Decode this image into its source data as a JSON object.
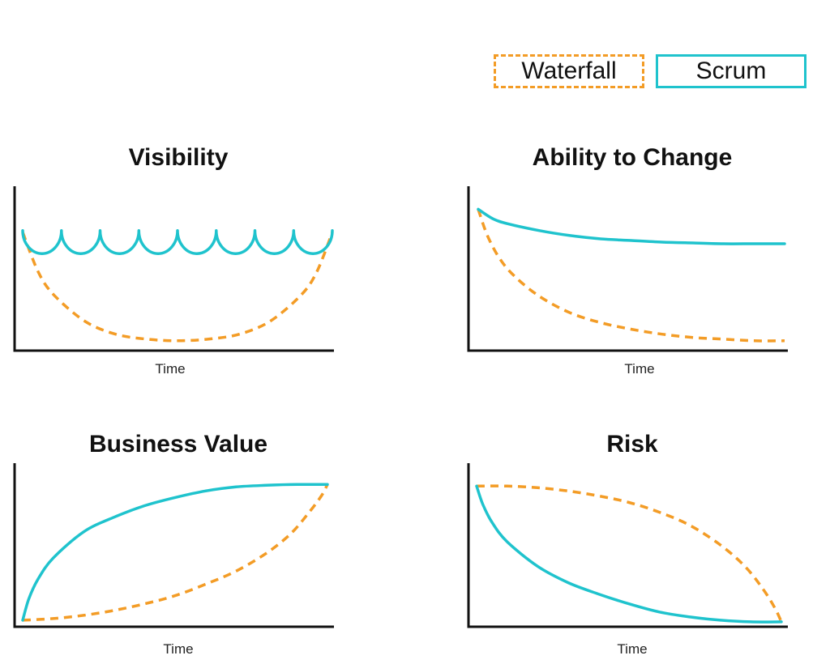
{
  "legend": {
    "waterfall_label": "Waterfall",
    "scrum_label": "Scrum",
    "colors": {
      "waterfall": "#f39c26",
      "scrum": "#1fc3cd"
    }
  },
  "chart_data": [
    {
      "type": "line",
      "title": "Visibility",
      "xlabel": "Time",
      "ylabel": "",
      "xlim": [
        0,
        1
      ],
      "ylim": [
        0,
        1
      ],
      "series": [
        {
          "name": "Waterfall",
          "style": "dashed",
          "x": [
            0,
            0.05,
            0.1,
            0.2,
            0.3,
            0.4,
            0.5,
            0.6,
            0.7,
            0.8,
            0.9,
            0.95,
            1.0
          ],
          "y": [
            0.72,
            0.48,
            0.34,
            0.18,
            0.1,
            0.07,
            0.06,
            0.07,
            0.1,
            0.18,
            0.34,
            0.48,
            0.72
          ]
        },
        {
          "name": "Scrum",
          "style": "solid",
          "segments": 8,
          "peak": 0.73,
          "trough": 0.59
        }
      ]
    },
    {
      "type": "line",
      "title": "Ability to Change",
      "xlabel": "Time",
      "ylabel": "",
      "xlim": [
        0,
        1
      ],
      "ylim": [
        0,
        1
      ],
      "series": [
        {
          "name": "Waterfall",
          "style": "dashed",
          "x": [
            0,
            0.03,
            0.07,
            0.12,
            0.2,
            0.3,
            0.4,
            0.5,
            0.6,
            0.7,
            0.8,
            0.9,
            1.0
          ],
          "y": [
            0.86,
            0.7,
            0.56,
            0.45,
            0.33,
            0.23,
            0.17,
            0.13,
            0.1,
            0.08,
            0.07,
            0.06,
            0.06
          ]
        },
        {
          "name": "Scrum",
          "style": "solid",
          "x": [
            0,
            0.05,
            0.1,
            0.2,
            0.3,
            0.4,
            0.5,
            0.6,
            0.7,
            0.8,
            0.9,
            1.0
          ],
          "y": [
            0.86,
            0.8,
            0.77,
            0.73,
            0.7,
            0.68,
            0.67,
            0.66,
            0.655,
            0.65,
            0.65,
            0.65
          ]
        }
      ]
    },
    {
      "type": "line",
      "title": "Business Value",
      "xlabel": "Time",
      "ylabel": "",
      "xlim": [
        0,
        1
      ],
      "ylim": [
        0,
        1
      ],
      "series": [
        {
          "name": "Waterfall",
          "style": "dashed",
          "x": [
            0,
            0.1,
            0.2,
            0.3,
            0.4,
            0.5,
            0.6,
            0.7,
            0.8,
            0.88,
            0.94,
            0.98,
            1.0
          ],
          "y": [
            0.04,
            0.05,
            0.07,
            0.1,
            0.14,
            0.19,
            0.26,
            0.34,
            0.45,
            0.57,
            0.7,
            0.8,
            0.87
          ]
        },
        {
          "name": "Scrum",
          "style": "solid",
          "x": [
            0,
            0.02,
            0.05,
            0.1,
            0.2,
            0.3,
            0.4,
            0.5,
            0.6,
            0.7,
            0.8,
            0.9,
            1.0
          ],
          "y": [
            0.04,
            0.17,
            0.29,
            0.42,
            0.58,
            0.67,
            0.74,
            0.79,
            0.83,
            0.855,
            0.865,
            0.87,
            0.87
          ]
        }
      ]
    },
    {
      "type": "line",
      "title": "Risk",
      "xlabel": "Time",
      "ylabel": "",
      "xlim": [
        0,
        1
      ],
      "ylim": [
        0,
        1
      ],
      "series": [
        {
          "name": "Waterfall",
          "style": "dashed",
          "x": [
            0,
            0.1,
            0.2,
            0.3,
            0.4,
            0.5,
            0.6,
            0.7,
            0.8,
            0.88,
            0.94,
            0.98,
            1.0
          ],
          "y": [
            0.86,
            0.86,
            0.85,
            0.83,
            0.8,
            0.76,
            0.7,
            0.62,
            0.5,
            0.37,
            0.23,
            0.11,
            0.03
          ]
        },
        {
          "name": "Scrum",
          "style": "solid",
          "x": [
            0,
            0.02,
            0.05,
            0.1,
            0.2,
            0.3,
            0.4,
            0.5,
            0.6,
            0.7,
            0.8,
            0.9,
            1.0
          ],
          "y": [
            0.86,
            0.75,
            0.64,
            0.52,
            0.37,
            0.27,
            0.2,
            0.14,
            0.09,
            0.06,
            0.04,
            0.03,
            0.03
          ]
        }
      ]
    }
  ]
}
